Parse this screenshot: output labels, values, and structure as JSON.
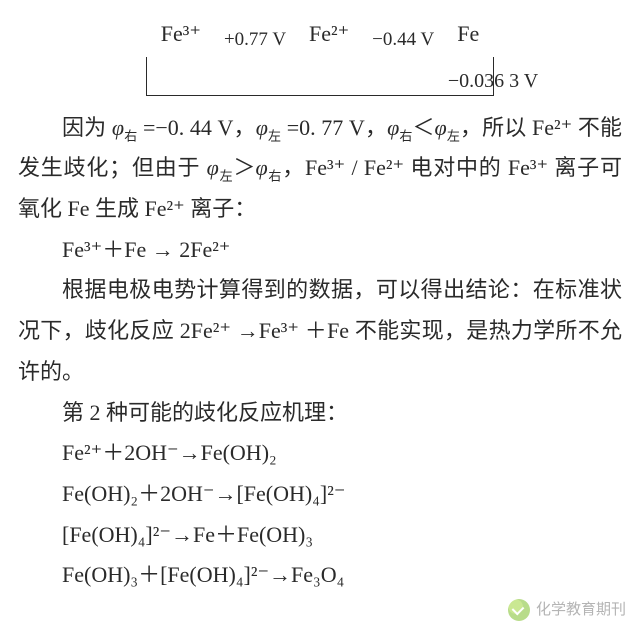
{
  "latimer": {
    "left_species": "Fe³⁺",
    "mid_species": "Fe²⁺",
    "right_species": "Fe",
    "pot_left": "+0.77 V",
    "pot_right": "−0.44 V",
    "pot_bottom": "−0.036 3 V"
  },
  "para1_a": "因为 ",
  "phi_r": "φ",
  "sub_r": "右",
  "eq_r": " =−0. 44 V，",
  "phi_l": "φ",
  "sub_l": "左",
  "eq_l": " =0. 77 V，",
  "cmp1": "＜",
  "para1_b": "，所以 Fe²⁺ 不能发生歧化；但由于 ",
  "cmp2": "＞",
  "para1_c": "，Fe³⁺ / Fe²⁺ 电对中的 Fe³⁺ 离子可氧化 Fe 生成 Fe²⁺ 离子：",
  "eq1": "Fe³⁺＋Fe → 2Fe²⁺",
  "para2": "根据电极电势计算得到的数据，可以得出结论：在标准状况下，歧化反应 2Fe²⁺ →Fe³⁺ ＋Fe 不能实现，是热力学所不允许的。",
  "para3": "第 2 种可能的歧化反应机理：",
  "eq2": "Fe²⁺＋2OH⁻→Fe(OH)₂",
  "eq3": "Fe(OH)₂＋2OH⁻→[Fe(OH)₄]²⁻",
  "eq4": "[Fe(OH)₄]²⁻→Fe＋Fe(OH)₃",
  "eq5": "Fe(OH)₃＋[Fe(OH)₄]²⁻→Fe₃O₄",
  "watermark": "化学教育期刊"
}
